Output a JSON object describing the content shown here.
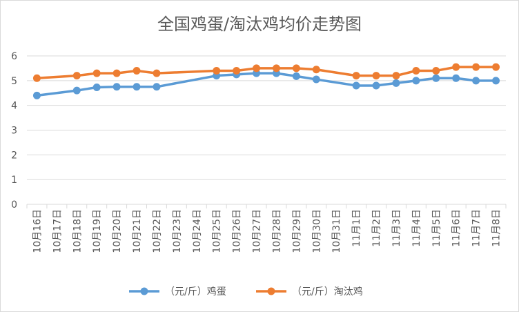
{
  "chart_data": {
    "type": "line",
    "title": "全国鸡蛋/淘汰鸡均价走势图",
    "xlabel": "",
    "ylabel": "",
    "ylim": [
      0,
      6
    ],
    "yticks": [
      0,
      1,
      2,
      3,
      4,
      5,
      6
    ],
    "grid": true,
    "legend_position": "bottom",
    "categories": [
      "10月16日",
      "10月17日",
      "10月18日",
      "10月19日",
      "10月20日",
      "10月21日",
      "10月22日",
      "10月23日",
      "10月24日",
      "10月25日",
      "10月26日",
      "10月27日",
      "10月28日",
      "10月29日",
      "10月30日",
      "10月31日",
      "11月1日",
      "11月2日",
      "11月3日",
      "11月4日",
      "11月5日",
      "11月6日",
      "11月7日",
      "11月8日"
    ],
    "series": [
      {
        "name": "（元/斤）鸡蛋",
        "color": "#5b9bd5",
        "values": [
          4.4,
          null,
          4.6,
          4.73,
          4.75,
          4.75,
          4.75,
          null,
          null,
          5.2,
          5.25,
          5.3,
          5.3,
          5.18,
          5.05,
          null,
          4.8,
          4.8,
          4.9,
          5.0,
          5.1,
          5.1,
          5.0,
          5.0
        ]
      },
      {
        "name": "（元/斤）淘汰鸡",
        "color": "#ed7d31",
        "values": [
          5.1,
          null,
          5.2,
          5.3,
          5.3,
          5.4,
          5.3,
          null,
          null,
          5.4,
          5.4,
          5.5,
          5.5,
          5.5,
          5.45,
          null,
          5.2,
          5.2,
          5.2,
          5.4,
          5.4,
          5.55,
          5.55,
          5.55
        ]
      }
    ]
  }
}
